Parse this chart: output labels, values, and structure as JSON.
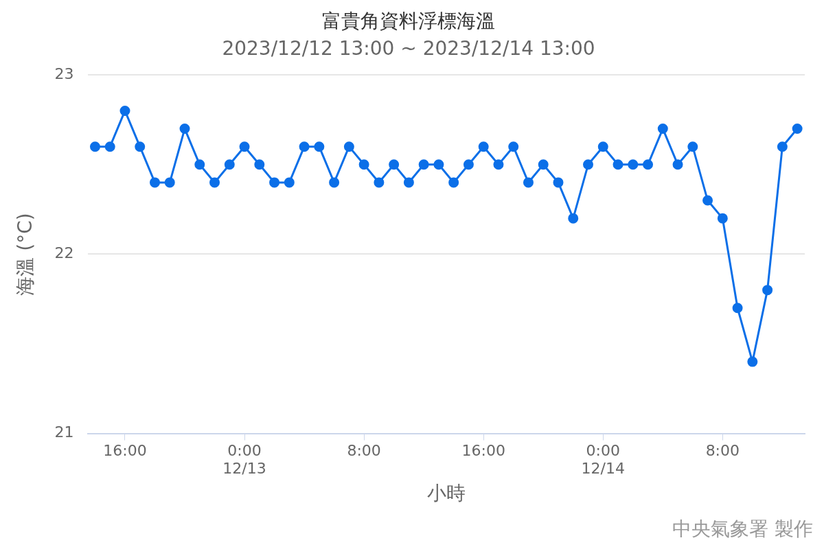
{
  "chart_data": {
    "type": "line",
    "title": "富貴角資料浮標海溫",
    "subtitle": "2023/12/12 13:00 ~ 2023/12/14 13:00",
    "xlabel": "小時",
    "ylabel": "海溫 (°C)",
    "annotations": [
      "中央氣象署 製作"
    ],
    "x": [
      "2023-12-12T14:00",
      "2023-12-12T15:00",
      "2023-12-12T16:00",
      "2023-12-12T17:00",
      "2023-12-12T18:00",
      "2023-12-12T19:00",
      "2023-12-12T20:00",
      "2023-12-12T21:00",
      "2023-12-12T22:00",
      "2023-12-12T23:00",
      "2023-12-13T00:00",
      "2023-12-13T01:00",
      "2023-12-13T02:00",
      "2023-12-13T03:00",
      "2023-12-13T04:00",
      "2023-12-13T05:00",
      "2023-12-13T06:00",
      "2023-12-13T07:00",
      "2023-12-13T08:00",
      "2023-12-13T09:00",
      "2023-12-13T10:00",
      "2023-12-13T11:00",
      "2023-12-13T12:00",
      "2023-12-13T13:00",
      "2023-12-13T14:00",
      "2023-12-13T15:00",
      "2023-12-13T16:00",
      "2023-12-13T17:00",
      "2023-12-13T18:00",
      "2023-12-13T19:00",
      "2023-12-13T20:00",
      "2023-12-13T21:00",
      "2023-12-13T22:00",
      "2023-12-13T23:00",
      "2023-12-14T00:00",
      "2023-12-14T01:00",
      "2023-12-14T02:00",
      "2023-12-14T03:00",
      "2023-12-14T04:00",
      "2023-12-14T05:00",
      "2023-12-14T06:00",
      "2023-12-14T07:00",
      "2023-12-14T08:00",
      "2023-12-14T09:00",
      "2023-12-14T10:00",
      "2023-12-14T11:00",
      "2023-12-14T12:00",
      "2023-12-14T13:00"
    ],
    "series": [
      {
        "color": "#0b6fe8",
        "values": [
          22.6,
          22.6,
          22.8,
          22.6,
          22.4,
          22.4,
          22.7,
          22.5,
          22.4,
          22.5,
          22.6,
          22.5,
          22.4,
          22.4,
          22.6,
          22.6,
          22.4,
          22.6,
          22.5,
          22.4,
          22.5,
          22.4,
          22.5,
          22.5,
          22.4,
          22.5,
          22.6,
          22.5,
          22.6,
          22.4,
          22.5,
          22.4,
          22.2,
          22.5,
          22.6,
          22.5,
          22.5,
          22.5,
          22.7,
          22.5,
          22.6,
          22.3,
          22.2,
          21.7,
          21.4,
          21.8,
          22.6,
          22.7
        ]
      }
    ],
    "xlim": [
      "2023-12-12T13:30",
      "2023-12-14T13:30"
    ],
    "xticks": [
      {
        "value": "2023-12-12T16:00",
        "label": "16:00"
      },
      {
        "value": "2023-12-13T00:00",
        "label": "0:00\n12/13"
      },
      {
        "value": "2023-12-13T08:00",
        "label": "8:00"
      },
      {
        "value": "2023-12-13T16:00",
        "label": "16:00"
      },
      {
        "value": "2023-12-14T00:00",
        "label": "0:00\n12/14"
      },
      {
        "value": "2023-12-14T08:00",
        "label": "8:00"
      }
    ],
    "ylim": [
      21,
      23
    ],
    "yticks": [
      21,
      22,
      23
    ],
    "grid": "y",
    "legend": false,
    "marker": "circle",
    "line_style": "solid"
  }
}
